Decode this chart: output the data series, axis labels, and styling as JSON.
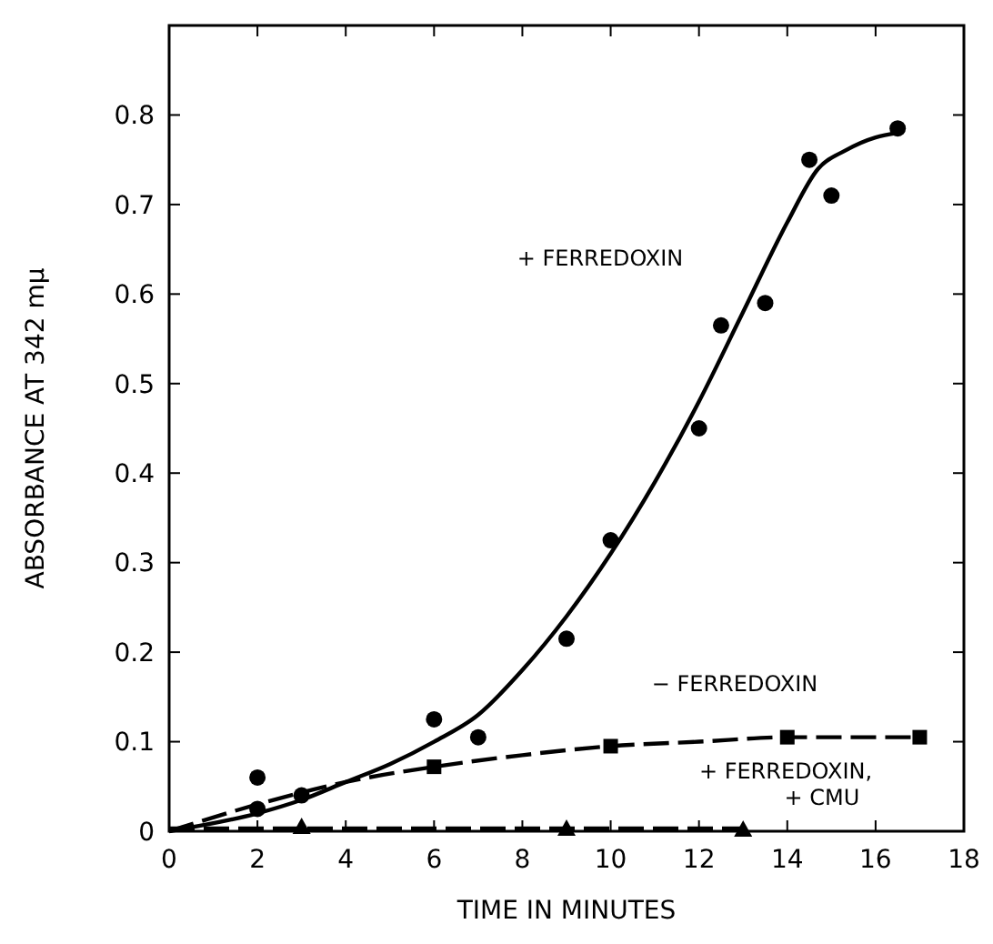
{
  "chart_data": {
    "type": "scatter",
    "xlabel": "TIME IN MINUTES",
    "ylabel": "ABSORBANCE AT 342 mμ",
    "xlim": [
      0,
      18
    ],
    "ylim": [
      0,
      0.9
    ],
    "xticks": [
      0,
      2,
      4,
      6,
      8,
      10,
      12,
      14,
      16,
      18
    ],
    "yticks": [
      {
        "value": 0,
        "label": "0"
      },
      0.1,
      0.2,
      0.3,
      0.4,
      0.5,
      0.6,
      0.7,
      0.8
    ],
    "grid": false,
    "series": [
      {
        "type": "line",
        "color": "#000000",
        "line_style": "solid",
        "marker": "none",
        "x": [
          0,
          2,
          3,
          4,
          5,
          6,
          7,
          8,
          9,
          10,
          11,
          12,
          13,
          14,
          14.7,
          15.3,
          16,
          16.5
        ],
        "values": [
          0,
          0.02,
          0.035,
          0.055,
          0.075,
          0.1,
          0.13,
          0.18,
          0.24,
          0.31,
          0.39,
          0.48,
          0.58,
          0.68,
          0.74,
          0.76,
          0.775,
          0.78
        ]
      },
      {
        "color": "#000000",
        "marker": "circle",
        "x": [
          2,
          2,
          3,
          6,
          7,
          9,
          10,
          12,
          12.5,
          13.5,
          14.5,
          15,
          16.5
        ],
        "values": [
          0.06,
          0.025,
          0.04,
          0.125,
          0.105,
          0.215,
          0.325,
          0.45,
          0.565,
          0.59,
          0.75,
          0.71,
          0.785
        ]
      },
      {
        "type": "line",
        "color": "#000000",
        "line_style": "dashed",
        "marker": "none",
        "x": [
          0,
          2,
          4,
          6,
          8,
          10,
          12,
          14,
          17
        ],
        "values": [
          0,
          0.03,
          0.055,
          0.072,
          0.085,
          0.095,
          0.1,
          0.105,
          0.105
        ]
      },
      {
        "color": "#000000",
        "marker": "square",
        "x": [
          6,
          10,
          14,
          17
        ],
        "values": [
          0.072,
          0.095,
          0.105,
          0.105
        ]
      },
      {
        "type": "line",
        "color": "#000000",
        "line_style": "dashed",
        "marker": "none",
        "x": [
          0,
          13
        ],
        "values": [
          0.003,
          0.003
        ]
      },
      {
        "color": "#000000",
        "marker": "triangle",
        "x": [
          3,
          9,
          13
        ],
        "values": [
          0.005,
          0.003,
          0.002
        ]
      }
    ],
    "annotations": [
      "+ FERREDOXIN",
      "− FERREDOXIN",
      "+ FERREDOXIN,\n+ CMU"
    ]
  }
}
